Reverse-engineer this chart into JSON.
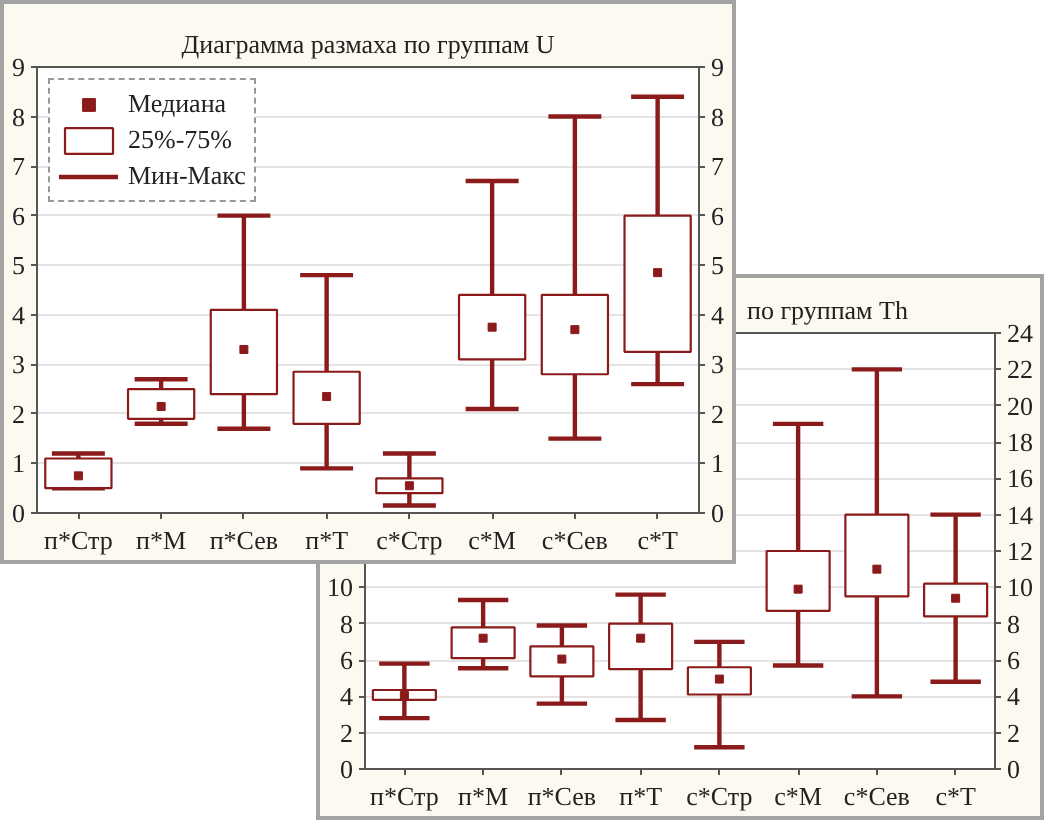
{
  "chart_data": [
    {
      "type": "box",
      "title": "Диаграмма размаха по группам U",
      "categories": [
        "п*Стр",
        "п*М",
        "п*Сев",
        "п*Т",
        "с*Стр",
        "с*М",
        "с*Сев",
        "с*Т"
      ],
      "boxes": [
        {
          "low": 0.5,
          "q1": 0.5,
          "median": 0.75,
          "q3": 1.1,
          "high": 1.2
        },
        {
          "low": 1.8,
          "q1": 1.9,
          "median": 2.15,
          "q3": 2.5,
          "high": 2.7
        },
        {
          "low": 1.7,
          "q1": 2.4,
          "median": 3.3,
          "q3": 4.1,
          "high": 6.0
        },
        {
          "low": 0.9,
          "q1": 1.8,
          "median": 2.35,
          "q3": 2.85,
          "high": 4.8
        },
        {
          "low": 0.15,
          "q1": 0.4,
          "median": 0.55,
          "q3": 0.7,
          "high": 1.2
        },
        {
          "low": 2.1,
          "q1": 3.1,
          "median": 3.75,
          "q3": 4.4,
          "high": 6.7
        },
        {
          "low": 1.5,
          "q1": 2.8,
          "median": 3.7,
          "q3": 4.4,
          "high": 8.0
        },
        {
          "low": 2.6,
          "q1": 3.25,
          "median": 4.85,
          "q3": 6.0,
          "high": 8.4
        }
      ],
      "series": [
        {
          "name": "Медиана",
          "color": "#8b1a1a",
          "values": [
            null,
            null,
            null,
            null,
            null,
            null,
            null,
            null
          ]
        },
        {
          "name": "25%-75%",
          "color": "#8b1a1a",
          "values": [
            null,
            null,
            null,
            null,
            null,
            null,
            null,
            null
          ]
        },
        {
          "name": "Мин-Макс",
          "color": "#8b1a1a",
          "values": [
            null,
            null,
            null,
            null,
            null,
            null,
            null,
            null
          ]
        }
      ],
      "ylim": [
        0,
        9
      ],
      "yticks": [
        0,
        1,
        2,
        3,
        4,
        5,
        6,
        7,
        8,
        9
      ],
      "y2lim": [
        0,
        9
      ],
      "y2ticks": [
        0,
        1,
        2,
        3,
        4,
        5,
        6,
        7,
        8,
        9
      ],
      "grid": "y",
      "marker": "square",
      "legend": "top left"
    },
    {
      "type": "box",
      "title": "по группам Th",
      "categories": [
        "п*Стр",
        "п*М",
        "п*Сев",
        "п*Т",
        "с*Стр",
        "с*М",
        "с*Сев",
        "с*Т"
      ],
      "boxes": [
        {
          "low": 2.8,
          "q1": 3.8,
          "median": 4.05,
          "q3": 4.35,
          "high": 5.8
        },
        {
          "low": 5.55,
          "q1": 6.1,
          "median": 7.2,
          "q3": 7.8,
          "high": 9.3
        },
        {
          "low": 3.6,
          "q1": 5.1,
          "median": 6.05,
          "q3": 6.75,
          "high": 7.9
        },
        {
          "low": 2.7,
          "q1": 5.5,
          "median": 7.2,
          "q3": 8.0,
          "high": 9.6
        },
        {
          "low": 1.2,
          "q1": 4.1,
          "median": 4.95,
          "q3": 5.6,
          "high": 7.0
        },
        {
          "low": 5.7,
          "q1": 8.7,
          "median": 9.9,
          "q3": 12.0,
          "high": 19.0
        },
        {
          "low": 4.0,
          "q1": 9.5,
          "median": 11.0,
          "q3": 14.0,
          "high": 22.0
        },
        {
          "low": 4.8,
          "q1": 8.4,
          "median": 9.4,
          "q3": 10.2,
          "high": 14.0
        }
      ],
      "series": [
        {
          "color": "#8b1a1a",
          "values": [
            null,
            null,
            null,
            null,
            null,
            null,
            null,
            null
          ]
        },
        {
          "color": "#8b1a1a",
          "values": [
            null,
            null,
            null,
            null,
            null,
            null,
            null,
            null
          ]
        },
        {
          "color": "#8b1a1a",
          "values": [
            null,
            null,
            null,
            null,
            null,
            null,
            null,
            null
          ]
        }
      ],
      "ylim": [
        0,
        24
      ],
      "yticks": [
        0,
        2,
        4,
        6,
        8,
        10
      ],
      "y2lim": [
        0,
        24
      ],
      "y2ticks": [
        0,
        2,
        4,
        6,
        8,
        10,
        12,
        14,
        16,
        18,
        20,
        22,
        24
      ],
      "grid": "y",
      "marker": "square"
    }
  ]
}
